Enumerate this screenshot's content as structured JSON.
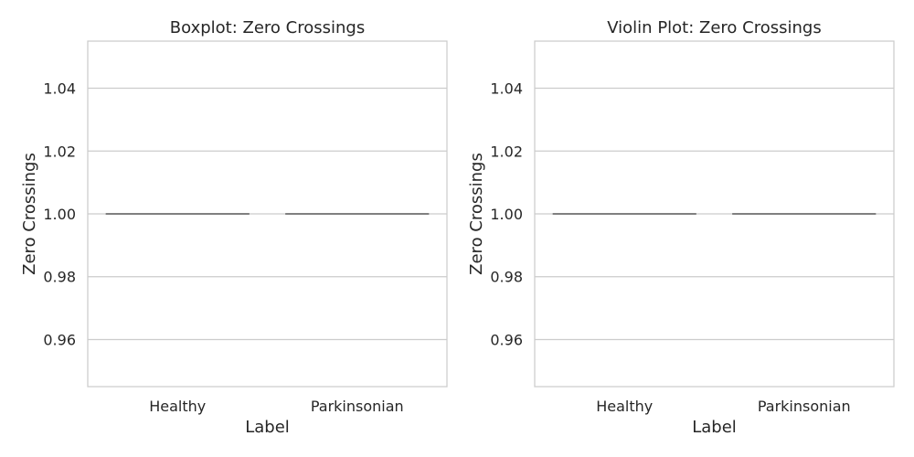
{
  "chart_data": [
    {
      "type": "box",
      "title": "Boxplot: Zero Crossings",
      "xlabel": "Label",
      "ylabel": "Zero Crossings",
      "categories": [
        "Healthy",
        "Parkinsonian"
      ],
      "values": [
        1.0,
        1.0
      ],
      "ylim": [
        0.945,
        1.055
      ],
      "yticks": [
        0.96,
        0.98,
        1.0,
        1.02,
        1.04
      ],
      "ytick_labels": [
        "0.96",
        "0.98",
        "1.00",
        "1.02",
        "1.04"
      ],
      "grid": true,
      "legend": "none"
    },
    {
      "type": "violin",
      "title": "Violin Plot: Zero Crossings",
      "xlabel": "Label",
      "ylabel": "Zero Crossings",
      "categories": [
        "Healthy",
        "Parkinsonian"
      ],
      "values": [
        1.0,
        1.0
      ],
      "ylim": [
        0.945,
        1.055
      ],
      "yticks": [
        0.96,
        0.98,
        1.0,
        1.02,
        1.04
      ],
      "ytick_labels": [
        "0.96",
        "0.98",
        "1.00",
        "1.02",
        "1.04"
      ],
      "grid": true,
      "legend": "none"
    }
  ],
  "colors": {
    "grid": "#cccccc",
    "mark": "#808080",
    "text": "#262626"
  }
}
